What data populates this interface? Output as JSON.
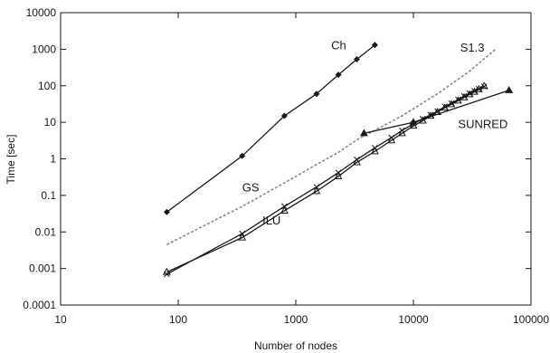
{
  "chart_data": {
    "type": "line",
    "title": "",
    "xlabel": "Number of nodes",
    "ylabel": "Time  [sec]",
    "x_scale": "log",
    "y_scale": "log",
    "xlim": [
      10,
      100000
    ],
    "ylim": [
      0.0001,
      10000
    ],
    "x_ticks": [
      "10",
      "100",
      "1000",
      "10000",
      "100000"
    ],
    "y_ticks": [
      "0.0001",
      "0.001",
      "0.01",
      "0.1",
      "1",
      "10",
      "100",
      "1000",
      "10000"
    ],
    "grid": false,
    "legend": "none",
    "series": [
      {
        "name": "Ch",
        "color": "#1a1a1a",
        "marker": "diamond",
        "points": [
          [
            80,
            0.035
          ],
          [
            350,
            1.2
          ],
          [
            800,
            15
          ],
          [
            1500,
            60
          ],
          [
            2300,
            200
          ],
          [
            3300,
            530
          ],
          [
            4700,
            1300
          ]
        ]
      },
      {
        "name": "S1.3",
        "color": "#8a8a8a",
        "marker": "none",
        "points": [
          [
            80,
            0.0045
          ],
          [
            350,
            0.05
          ],
          [
            800,
            0.22
          ],
          [
            1500,
            0.7
          ],
          [
            2300,
            1.5
          ],
          [
            3300,
            3.3
          ],
          [
            4700,
            6
          ],
          [
            8000,
            15
          ],
          [
            16000,
            60
          ],
          [
            30000,
            250
          ],
          [
            50000,
            1000
          ]
        ]
      },
      {
        "name": "GS",
        "color": "#1a1a1a",
        "marker": "x",
        "points": [
          [
            80,
            0.0007
          ],
          [
            350,
            0.009
          ],
          [
            800,
            0.05
          ],
          [
            1500,
            0.17
          ],
          [
            2300,
            0.42
          ],
          [
            3300,
            0.95
          ],
          [
            4700,
            2
          ],
          [
            6500,
            3.8
          ],
          [
            8000,
            6
          ],
          [
            10000,
            9
          ],
          [
            12000,
            12.5
          ],
          [
            14000,
            16
          ],
          [
            16000,
            20
          ],
          [
            18500,
            27
          ],
          [
            21000,
            33
          ],
          [
            24000,
            42
          ],
          [
            27000,
            52
          ],
          [
            30000,
            62
          ],
          [
            33000,
            72
          ],
          [
            36000,
            82
          ],
          [
            40000,
            95
          ]
        ]
      },
      {
        "name": "ILU",
        "color": "#1a1a1a",
        "marker": "triangle",
        "points": [
          [
            80,
            0.0008
          ],
          [
            350,
            0.007
          ],
          [
            800,
            0.038
          ],
          [
            1500,
            0.13
          ],
          [
            2300,
            0.33
          ],
          [
            3300,
            0.8
          ],
          [
            4700,
            1.6
          ],
          [
            6500,
            3.2
          ],
          [
            8000,
            5
          ],
          [
            10000,
            8
          ],
          [
            12000,
            11
          ],
          [
            14000,
            15
          ],
          [
            16000,
            19
          ],
          [
            18500,
            25
          ],
          [
            21000,
            31
          ],
          [
            24000,
            39
          ],
          [
            27000,
            48
          ],
          [
            30000,
            58
          ],
          [
            33000,
            68
          ],
          [
            36000,
            80
          ],
          [
            40000,
            98
          ]
        ]
      },
      {
        "name": "SUNRED",
        "color": "#1a1a1a",
        "marker": "triangle",
        "points": [
          [
            3800,
            5
          ],
          [
            10000,
            10
          ],
          [
            65000,
            75
          ]
        ]
      }
    ],
    "labels": [
      {
        "text": "Ch",
        "x": 2000,
        "y": 1000
      },
      {
        "text": "S1.3",
        "x": 25000,
        "y": 850
      },
      {
        "text": "SUNRED",
        "x": 24000,
        "y": 7
      },
      {
        "text": "GS",
        "x": 350,
        "y": 0.13
      },
      {
        "text": "ILU",
        "x": 520,
        "y": 0.016
      }
    ]
  }
}
